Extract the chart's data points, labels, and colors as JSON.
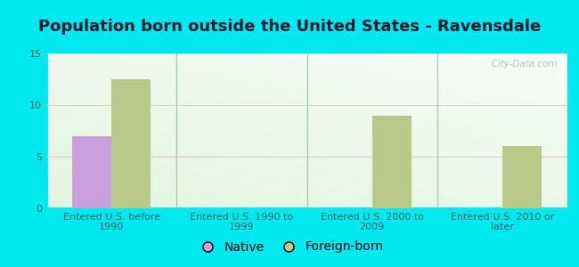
{
  "title": "Population born outside the United States - Ravensdale",
  "categories": [
    "Entered U.S. before\n1990",
    "Entered U.S. 1990 to\n1999",
    "Entered U.S. 2000 to\n2009",
    "Entered U.S. 2010 or\nlater"
  ],
  "native_values": [
    7,
    0,
    0,
    0
  ],
  "foreign_values": [
    12.5,
    0,
    9,
    6
  ],
  "native_color": "#c9a0dc",
  "foreign_color": "#b8c98a",
  "ylim": [
    0,
    15
  ],
  "yticks": [
    0,
    5,
    10,
    15
  ],
  "bar_width": 0.3,
  "figure_bg": "#00e8f0",
  "plot_bg": "#e8f5e0",
  "legend_native": "Native",
  "legend_foreign": "Foreign-born",
  "title_fontsize": 13,
  "tick_fontsize": 8,
  "legend_fontsize": 10,
  "watermark": "  City-Data.com",
  "title_color": "#1a1a2e",
  "tick_color": "#336666",
  "separator_color": "#aaccaa",
  "grid_color": "#ddeecc"
}
